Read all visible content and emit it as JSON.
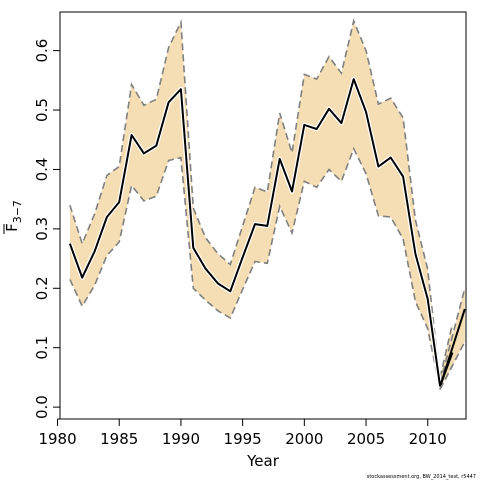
{
  "chart_data": {
    "type": "line",
    "xlabel": "Year",
    "ylabel": "F3-7",
    "xlim": [
      1980.2,
      2013.1
    ],
    "ylim": [
      -0.02,
      0.665
    ],
    "x_ticks": [
      "1980",
      "1985",
      "1990",
      "1995",
      "2000",
      "2005",
      "2010"
    ],
    "y_ticks": [
      "0.0",
      "0.1",
      "0.2",
      "0.3",
      "0.4",
      "0.5",
      "0.6"
    ],
    "band_color": "#f5deb3",
    "series_color": "#000000",
    "bound_color": "#808080",
    "series": [
      {
        "x": [
          1981,
          1982,
          1983,
          1984,
          1985,
          1986,
          1987,
          1988,
          1989,
          1990,
          1991,
          1992,
          1993,
          1994,
          1995,
          1996,
          1997,
          1998,
          1999,
          2000,
          2001,
          2002,
          2003,
          2004,
          2005,
          2006,
          2007,
          2008,
          2009,
          2010,
          2011
        ],
        "y": [
          0.275,
          0.218,
          0.262,
          0.32,
          0.345,
          0.458,
          0.427,
          0.44,
          0.513,
          0.535,
          0.268,
          0.233,
          0.208,
          0.195,
          0.252,
          0.308,
          0.305,
          0.418,
          0.363,
          0.475,
          0.468,
          0.502,
          0.478,
          0.552,
          0.497,
          0.405,
          0.42,
          0.388,
          0.258,
          0.182,
          0.035
        ],
        "lower": [
          0.215,
          0.17,
          0.205,
          0.255,
          0.278,
          0.373,
          0.347,
          0.355,
          0.415,
          0.42,
          0.2,
          0.18,
          0.162,
          0.15,
          0.198,
          0.245,
          0.242,
          0.338,
          0.293,
          0.38,
          0.37,
          0.4,
          0.38,
          0.435,
          0.393,
          0.322,
          0.32,
          0.283,
          0.178,
          0.132,
          0.03
        ],
        "upper": [
          0.34,
          0.275,
          0.325,
          0.39,
          0.405,
          0.543,
          0.508,
          0.518,
          0.605,
          0.648,
          0.335,
          0.285,
          0.258,
          0.24,
          0.305,
          0.37,
          0.362,
          0.495,
          0.428,
          0.56,
          0.552,
          0.59,
          0.562,
          0.65,
          0.6,
          0.51,
          0.52,
          0.487,
          0.315,
          0.232,
          0.04
        ]
      },
      {
        "x": [
          2011,
          2012
        ],
        "y": [
          0.035,
          0.092
        ],
        "lower": [
          0.03,
          0.07
        ],
        "upper": [
          0.05,
          0.14
        ]
      },
      {
        "x": [
          2011,
          2013
        ],
        "y": [
          0.035,
          0.165
        ],
        "lower": [
          0.03,
          0.11
        ],
        "upper": [
          0.04,
          0.2
        ]
      }
    ]
  },
  "credit": "stockassessment.org, BW_2014_test, r5447"
}
